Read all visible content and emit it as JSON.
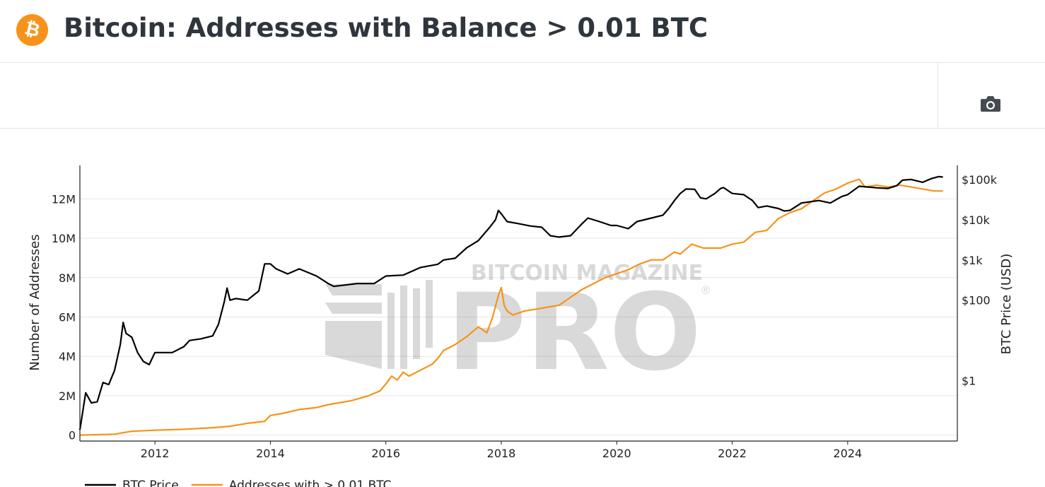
{
  "header": {
    "logo_glyph": "₿",
    "title": "Bitcoin: Addresses with Balance > 0.01 BTC"
  },
  "toolbar": {
    "camera_icon": "camera-icon"
  },
  "watermark": {
    "top": "BITCOIN MAGAZINE",
    "big": "PRO",
    "mark": "®"
  },
  "colors": {
    "btc_price": "#000000",
    "addresses": "#f7931a",
    "accent": "#f7931a",
    "grid": "#e5e5e5"
  },
  "chart_data": {
    "type": "line",
    "title": "Bitcoin: Addresses with Balance > 0.01 BTC",
    "xlabel": "",
    "ylabel": "Number of Addresses",
    "y2label": "BTC Price (USD)",
    "x_ticks": [
      "2012",
      "2014",
      "2016",
      "2018",
      "2020",
      "2022",
      "2024"
    ],
    "y_ticks": [
      "0",
      "2M",
      "4M",
      "6M",
      "8M",
      "10M",
      "12M"
    ],
    "y2_ticks": [
      "$1",
      "$100",
      "$1k",
      "$10k",
      "$100k"
    ],
    "xlim": [
      2010.7,
      2025.9
    ],
    "ylim": [
      -0.3,
      13.7
    ],
    "y2_scale": "log",
    "y2_log_range": [
      -1.5,
      5.35
    ],
    "grid": true,
    "legend_position": "bottom-left",
    "series": [
      {
        "name": "BTC Price",
        "axis": "y2",
        "unit": "USD",
        "points": [
          [
            2010.7,
            0.06
          ],
          [
            2010.8,
            0.5
          ],
          [
            2010.9,
            0.28
          ],
          [
            2011.0,
            0.3
          ],
          [
            2011.1,
            0.9
          ],
          [
            2011.2,
            0.8
          ],
          [
            2011.3,
            1.8
          ],
          [
            2011.4,
            8
          ],
          [
            2011.45,
            28
          ],
          [
            2011.5,
            15
          ],
          [
            2011.6,
            12
          ],
          [
            2011.7,
            5
          ],
          [
            2011.8,
            3
          ],
          [
            2011.9,
            2.5
          ],
          [
            2012.0,
            5
          ],
          [
            2012.1,
            5
          ],
          [
            2012.3,
            5
          ],
          [
            2012.5,
            7
          ],
          [
            2012.6,
            10
          ],
          [
            2012.8,
            11
          ],
          [
            2013.0,
            13
          ],
          [
            2013.1,
            25
          ],
          [
            2013.2,
            90
          ],
          [
            2013.25,
            200
          ],
          [
            2013.3,
            100
          ],
          [
            2013.4,
            110
          ],
          [
            2013.6,
            100
          ],
          [
            2013.8,
            170
          ],
          [
            2013.9,
            800
          ],
          [
            2014.0,
            800
          ],
          [
            2014.1,
            600
          ],
          [
            2014.3,
            450
          ],
          [
            2014.5,
            600
          ],
          [
            2014.8,
            400
          ],
          [
            2015.0,
            260
          ],
          [
            2015.1,
            220
          ],
          [
            2015.5,
            260
          ],
          [
            2015.8,
            260
          ],
          [
            2016.0,
            400
          ],
          [
            2016.3,
            420
          ],
          [
            2016.6,
            650
          ],
          [
            2016.9,
            780
          ],
          [
            2017.0,
            1000
          ],
          [
            2017.2,
            1100
          ],
          [
            2017.4,
            2000
          ],
          [
            2017.6,
            3000
          ],
          [
            2017.8,
            6500
          ],
          [
            2017.9,
            10000
          ],
          [
            2017.95,
            17000
          ],
          [
            2018.0,
            14000
          ],
          [
            2018.1,
            9000
          ],
          [
            2018.3,
            8000
          ],
          [
            2018.5,
            7000
          ],
          [
            2018.7,
            6500
          ],
          [
            2018.85,
            4000
          ],
          [
            2019.0,
            3700
          ],
          [
            2019.2,
            4000
          ],
          [
            2019.4,
            8000
          ],
          [
            2019.5,
            11000
          ],
          [
            2019.7,
            9000
          ],
          [
            2019.9,
            7200
          ],
          [
            2020.0,
            7200
          ],
          [
            2020.2,
            6000
          ],
          [
            2020.35,
            9000
          ],
          [
            2020.6,
            11000
          ],
          [
            2020.8,
            13000
          ],
          [
            2020.9,
            19000
          ],
          [
            2021.0,
            30000
          ],
          [
            2021.1,
            45000
          ],
          [
            2021.2,
            58000
          ],
          [
            2021.35,
            57000
          ],
          [
            2021.45,
            35000
          ],
          [
            2021.55,
            33000
          ],
          [
            2021.7,
            45000
          ],
          [
            2021.8,
            60000
          ],
          [
            2021.85,
            63000
          ],
          [
            2022.0,
            45000
          ],
          [
            2022.2,
            42000
          ],
          [
            2022.35,
            30000
          ],
          [
            2022.45,
            20000
          ],
          [
            2022.6,
            22000
          ],
          [
            2022.8,
            19000
          ],
          [
            2022.9,
            16500
          ],
          [
            2023.0,
            17000
          ],
          [
            2023.2,
            26000
          ],
          [
            2023.5,
            30000
          ],
          [
            2023.7,
            26000
          ],
          [
            2023.9,
            38000
          ],
          [
            2024.0,
            42000
          ],
          [
            2024.2,
            68000
          ],
          [
            2024.5,
            62000
          ],
          [
            2024.7,
            60000
          ],
          [
            2024.85,
            70000
          ],
          [
            2024.95,
            96000
          ],
          [
            2025.1,
            100000
          ],
          [
            2025.3,
            85000
          ],
          [
            2025.45,
            105000
          ],
          [
            2025.58,
            118000
          ],
          [
            2025.65,
            115000
          ]
        ]
      },
      {
        "name": "Addresses with > 0.01 BTC",
        "axis": "y",
        "unit": "addresses (millions)",
        "points": [
          [
            2010.7,
            0.0
          ],
          [
            2011.3,
            0.05
          ],
          [
            2011.6,
            0.2
          ],
          [
            2012.0,
            0.25
          ],
          [
            2012.5,
            0.3
          ],
          [
            2013.0,
            0.38
          ],
          [
            2013.3,
            0.45
          ],
          [
            2013.6,
            0.6
          ],
          [
            2013.9,
            0.7
          ],
          [
            2014.0,
            1.0
          ],
          [
            2014.2,
            1.1
          ],
          [
            2014.5,
            1.3
          ],
          [
            2014.8,
            1.4
          ],
          [
            2015.0,
            1.55
          ],
          [
            2015.4,
            1.75
          ],
          [
            2015.7,
            2.0
          ],
          [
            2015.9,
            2.25
          ],
          [
            2016.0,
            2.6
          ],
          [
            2016.1,
            3.0
          ],
          [
            2016.2,
            2.8
          ],
          [
            2016.3,
            3.2
          ],
          [
            2016.4,
            3.0
          ],
          [
            2016.6,
            3.3
          ],
          [
            2016.8,
            3.6
          ],
          [
            2016.9,
            3.9
          ],
          [
            2017.0,
            4.3
          ],
          [
            2017.2,
            4.6
          ],
          [
            2017.4,
            5.0
          ],
          [
            2017.6,
            5.5
          ],
          [
            2017.75,
            5.2
          ],
          [
            2017.85,
            6.0
          ],
          [
            2017.95,
            7.1
          ],
          [
            2018.0,
            7.5
          ],
          [
            2018.05,
            6.6
          ],
          [
            2018.1,
            6.3
          ],
          [
            2018.2,
            6.1
          ],
          [
            2018.4,
            6.3
          ],
          [
            2018.6,
            6.4
          ],
          [
            2018.8,
            6.5
          ],
          [
            2019.0,
            6.6
          ],
          [
            2019.2,
            7.0
          ],
          [
            2019.4,
            7.4
          ],
          [
            2019.6,
            7.7
          ],
          [
            2019.8,
            8.0
          ],
          [
            2020.0,
            8.2
          ],
          [
            2020.2,
            8.4
          ],
          [
            2020.4,
            8.7
          ],
          [
            2020.6,
            8.9
          ],
          [
            2020.8,
            8.9
          ],
          [
            2021.0,
            9.3
          ],
          [
            2021.1,
            9.2
          ],
          [
            2021.3,
            9.7
          ],
          [
            2021.5,
            9.5
          ],
          [
            2021.8,
            9.5
          ],
          [
            2022.0,
            9.7
          ],
          [
            2022.2,
            9.8
          ],
          [
            2022.4,
            10.3
          ],
          [
            2022.6,
            10.4
          ],
          [
            2022.8,
            11.0
          ],
          [
            2023.0,
            11.3
          ],
          [
            2023.2,
            11.5
          ],
          [
            2023.4,
            11.9
          ],
          [
            2023.6,
            12.3
          ],
          [
            2023.8,
            12.5
          ],
          [
            2024.0,
            12.8
          ],
          [
            2024.2,
            13.0
          ],
          [
            2024.3,
            12.6
          ],
          [
            2024.5,
            12.7
          ],
          [
            2024.7,
            12.6
          ],
          [
            2024.9,
            12.7
          ],
          [
            2025.1,
            12.6
          ],
          [
            2025.3,
            12.5
          ],
          [
            2025.5,
            12.4
          ],
          [
            2025.65,
            12.4
          ]
        ]
      }
    ]
  }
}
